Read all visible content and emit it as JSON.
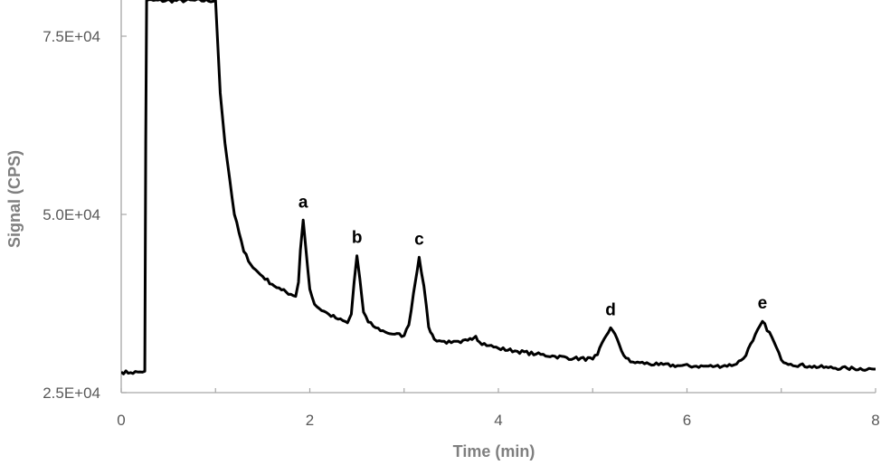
{
  "chart_data": {
    "type": "line",
    "title": "",
    "xlabel": "Time (min)",
    "ylabel": "Signal (CPS)",
    "xlim": [
      0,
      8
    ],
    "ylim": [
      25000,
      77000
    ],
    "x_ticks": [
      0,
      2,
      4,
      6,
      8
    ],
    "x_tick_labels": [
      "0",
      "2",
      "4",
      "6",
      "8"
    ],
    "x_minor_ticks": [
      1,
      3,
      5,
      7
    ],
    "y_ticks": [
      25000,
      50000,
      75000
    ],
    "y_tick_labels": [
      "2.5E+04",
      "5.0E+04",
      "7.5E+04"
    ],
    "grid": false,
    "legend": null,
    "line_color": "#000000",
    "series": [
      {
        "name": "Signal",
        "x": [
          0.0,
          0.1,
          0.2,
          0.25,
          0.26,
          0.27,
          1.0,
          1.05,
          1.1,
          1.15,
          1.2,
          1.3,
          1.4,
          1.5,
          1.6,
          1.7,
          1.8,
          1.85,
          1.88,
          1.9,
          1.93,
          1.96,
          2.0,
          2.05,
          2.1,
          2.2,
          2.3,
          2.4,
          2.44,
          2.47,
          2.5,
          2.53,
          2.57,
          2.62,
          2.7,
          2.8,
          2.9,
          3.0,
          3.05,
          3.1,
          3.16,
          3.21,
          3.26,
          3.32,
          3.4,
          3.5,
          3.6,
          3.7,
          3.76,
          3.8,
          3.9,
          4.0,
          4.2,
          4.4,
          4.6,
          4.8,
          5.0,
          5.05,
          5.12,
          5.19,
          5.26,
          5.33,
          5.4,
          5.5,
          5.7,
          5.9,
          6.1,
          6.3,
          6.5,
          6.6,
          6.7,
          6.8,
          6.9,
          7.0,
          7.1,
          7.3,
          7.5,
          7.7,
          8.0
        ],
        "y": [
          27900,
          27800,
          27900,
          28000,
          60000,
          80000,
          80000,
          67000,
          60000,
          55000,
          50000,
          44800,
          42500,
          41300,
          40200,
          39400,
          38800,
          38500,
          40500,
          45000,
          49200,
          45000,
          39500,
          37400,
          36800,
          36000,
          35300,
          34800,
          36000,
          40500,
          44200,
          41000,
          36300,
          34900,
          34100,
          33500,
          33200,
          33000,
          34500,
          39000,
          44000,
          40000,
          34200,
          32500,
          32200,
          32000,
          32000,
          32600,
          32900,
          32100,
          31600,
          31200,
          30800,
          30400,
          30100,
          29800,
          29700,
          30300,
          32500,
          34100,
          32500,
          30200,
          29300,
          29200,
          28900,
          28800,
          28700,
          28700,
          28900,
          29800,
          32300,
          35000,
          32800,
          29600,
          29000,
          28700,
          28500,
          28400,
          28300
        ]
      }
    ],
    "annotations": [
      {
        "label": "a",
        "x": 1.93,
        "y": 49200
      },
      {
        "label": "b",
        "x": 2.5,
        "y": 44200
      },
      {
        "label": "c",
        "x": 3.16,
        "y": 44000
      },
      {
        "label": "d",
        "x": 5.19,
        "y": 34100
      },
      {
        "label": "e",
        "x": 6.8,
        "y": 35000
      }
    ]
  }
}
